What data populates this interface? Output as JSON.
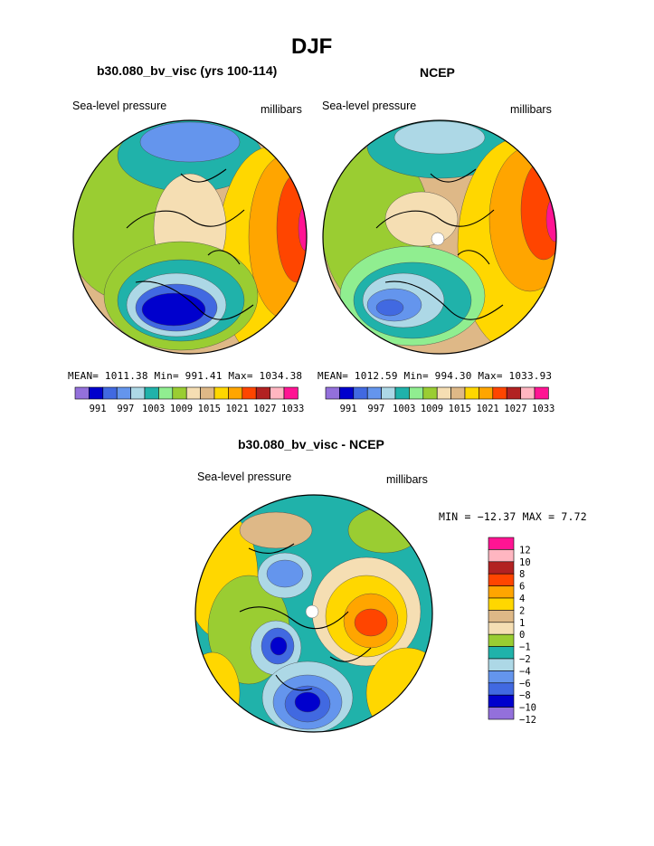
{
  "header": {
    "title": "DJF"
  },
  "panels": [
    {
      "title": "b30.080_bv_visc (yrs 100-114)",
      "left_label": "Sea-level pressure",
      "right_label": "millibars",
      "stats": "MEAN= 1011.38  Min= 991.41  Max= 1034.38"
    },
    {
      "title": "NCEP",
      "left_label": "Sea-level pressure",
      "right_label": "millibars",
      "stats": "MEAN= 1012.59  Min= 994.30  Max= 1033.93"
    }
  ],
  "difference": {
    "title": "b30.080_bv_visc - NCEP",
    "left_label": "Sea-level pressure",
    "right_label": "millibars",
    "stats": "MIN = −12.37 MAX =    7.72"
  },
  "colors": {
    "slp_scale": [
      "#9370db",
      "#0000cd",
      "#4169e1",
      "#6495ed",
      "#add8e6",
      "#20b2aa",
      "#90ee90",
      "#9acd32",
      "#f5deb3",
      "#deb887",
      "#ffd700",
      "#ffa500",
      "#ff4500",
      "#b22222",
      "#ffb6c1",
      "#ff1493"
    ],
    "diff_scale": [
      "#ff1493",
      "#ffb6c1",
      "#b22222",
      "#ff4500",
      "#ffa500",
      "#ffd700",
      "#deb887",
      "#f5deb3",
      "#9acd32",
      "#20b2aa",
      "#add8e6",
      "#6495ed",
      "#4169e1",
      "#0000cd",
      "#9370db"
    ]
  },
  "chart_data": [
    {
      "type": "heatmap",
      "title": "b30.080_bv_visc (yrs 100-114)",
      "colorbar_ticks": [
        "991",
        "997",
        "1003",
        "1009",
        "1015",
        "1021",
        "1027",
        "1033"
      ],
      "mean": 1011.38,
      "min": 991.41,
      "max": 1034.38
    },
    {
      "type": "heatmap",
      "title": "NCEP",
      "colorbar_ticks": [
        "991",
        "997",
        "1003",
        "1009",
        "1015",
        "1021",
        "1027",
        "1033"
      ],
      "mean": 1012.59,
      "min": 994.3,
      "max": 1033.93
    },
    {
      "type": "heatmap",
      "title": "b30.080_bv_visc - NCEP",
      "colorbar_ticks": [
        "12",
        "10",
        "8",
        "6",
        "4",
        "2",
        "1",
        "0",
        "−1",
        "−2",
        "−4",
        "−6",
        "−8",
        "−10",
        "−12"
      ],
      "min": -12.37,
      "max": 7.72
    }
  ]
}
